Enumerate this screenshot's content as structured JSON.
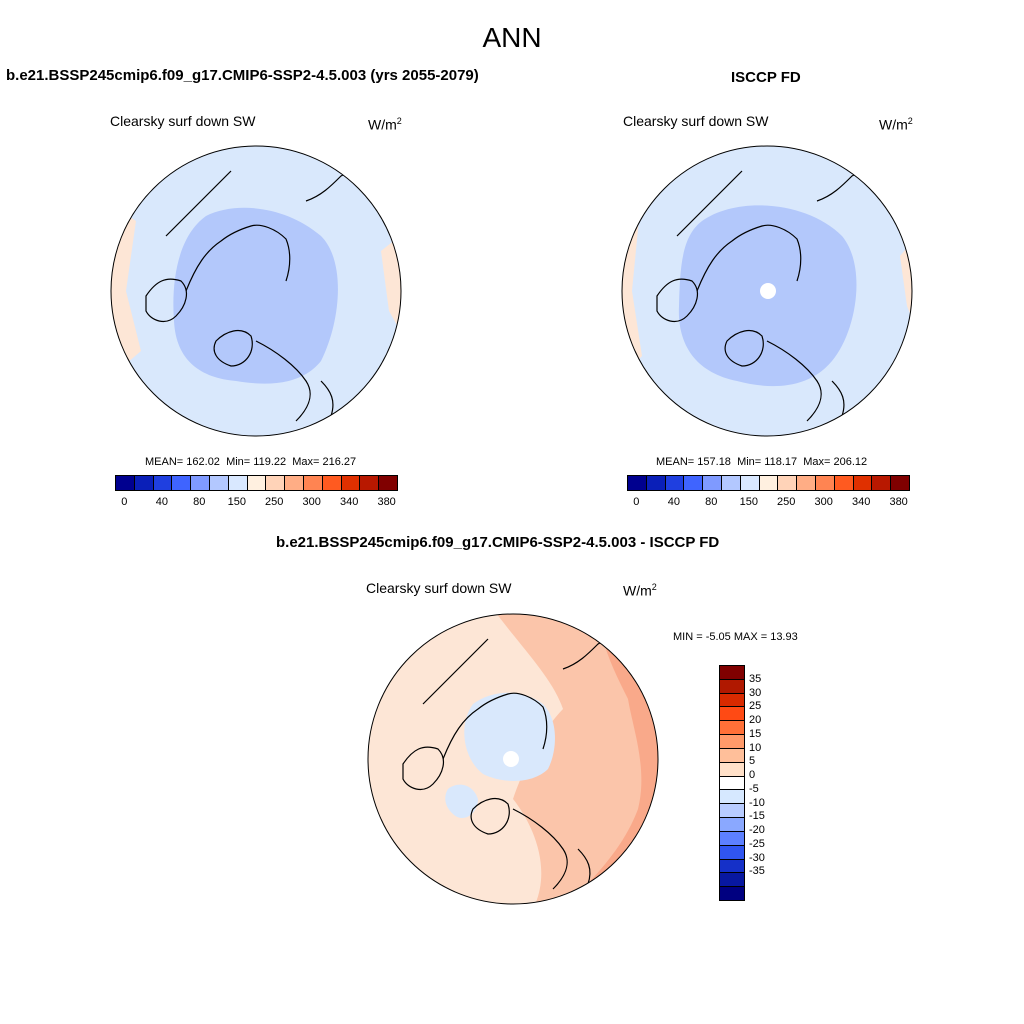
{
  "main_title": "ANN",
  "panels": {
    "model": {
      "title": "b.e21.BSSP245cmip6.f09_g17.CMIP6-SSP2-4.5.003 (yrs 2055-2079)",
      "variable": "Clearsky surf down SW",
      "unit_base": "W/m",
      "unit_exp": "2",
      "stats_mean_label": "MEAN=",
      "stats_mean": "162.02",
      "stats_min_label": "Min=",
      "stats_min": "119.22",
      "stats_max_label": "Max=",
      "stats_max": "216.27"
    },
    "obs": {
      "title": "ISCCP FD",
      "variable": "Clearsky surf down SW",
      "unit_base": "W/m",
      "unit_exp": "2",
      "stats_mean_label": "MEAN=",
      "stats_mean": "157.18",
      "stats_min_label": "Min=",
      "stats_min": "118.17",
      "stats_max_label": "Max=",
      "stats_max": "206.12"
    },
    "diff": {
      "title": "b.e21.BSSP245cmip6.f09_g17.CMIP6-SSP2-4.5.003 - ISCCP FD",
      "variable": "Clearsky surf down SW",
      "unit_base": "W/m",
      "unit_exp": "2",
      "minmax_text": "MIN =  -5.05 MAX =  13.93"
    }
  },
  "colorbars": {
    "field": {
      "colors": [
        "#00008f",
        "#0a1fb8",
        "#1f3fe0",
        "#3f64ff",
        "#7f9aff",
        "#b3c8ff",
        "#d9e8ff",
        "#fff0e0",
        "#ffd3b8",
        "#ffad85",
        "#ff8452",
        "#ff5a20",
        "#e03000",
        "#b81800",
        "#800000"
      ],
      "tick_labels": [
        "0",
        "40",
        "80",
        "150",
        "250",
        "300",
        "340",
        "380"
      ]
    },
    "diff": {
      "colors": [
        "#800000",
        "#b01800",
        "#d82a00",
        "#ff4a14",
        "#ff7038",
        "#ff9a6a",
        "#ffbf9a",
        "#ffe0c8",
        "#ffffff",
        "#d6e8ff",
        "#b8ccff",
        "#8aa8ff",
        "#5d80ff",
        "#3055f0",
        "#1530c8",
        "#0818a0",
        "#000080"
      ],
      "tick_labels": [
        "35",
        "30",
        "25",
        "20",
        "15",
        "10",
        "5",
        "0",
        "-5",
        "-10",
        "-15",
        "-20",
        "-25",
        "-30",
        "-35"
      ]
    }
  },
  "map_colors": {
    "ocean_light": "#d9e8fc",
    "arctic_blue": "#b3c8fb",
    "warm_edge": "#fde6d6",
    "diff_base": "#fde6d6",
    "diff_warm": "#fbc5aa",
    "diff_warmer": "#f9a98a",
    "diff_cool": "#d9e8fc"
  },
  "chart_data": [
    {
      "type": "heatmap",
      "projection": "north-polar-stereographic",
      "title": "Clearsky surf down SW",
      "units": "W/m2",
      "mean": 162.02,
      "min": 119.22,
      "max": 216.27,
      "levels": [
        0,
        40,
        80,
        150,
        250,
        300,
        340,
        380
      ]
    },
    {
      "type": "heatmap",
      "projection": "north-polar-stereographic",
      "title": "Clearsky surf down SW",
      "units": "W/m2",
      "mean": 157.18,
      "min": 118.17,
      "max": 206.12,
      "levels": [
        0,
        40,
        80,
        150,
        250,
        300,
        340,
        380
      ]
    },
    {
      "type": "heatmap",
      "projection": "north-polar-stereographic",
      "title": "Clearsky surf down SW",
      "units": "W/m2",
      "min": -5.05,
      "max": 13.93,
      "levels": [
        35,
        30,
        25,
        20,
        15,
        10,
        5,
        0,
        -5,
        -10,
        -15,
        -20,
        -25,
        -30,
        -35
      ]
    }
  ]
}
